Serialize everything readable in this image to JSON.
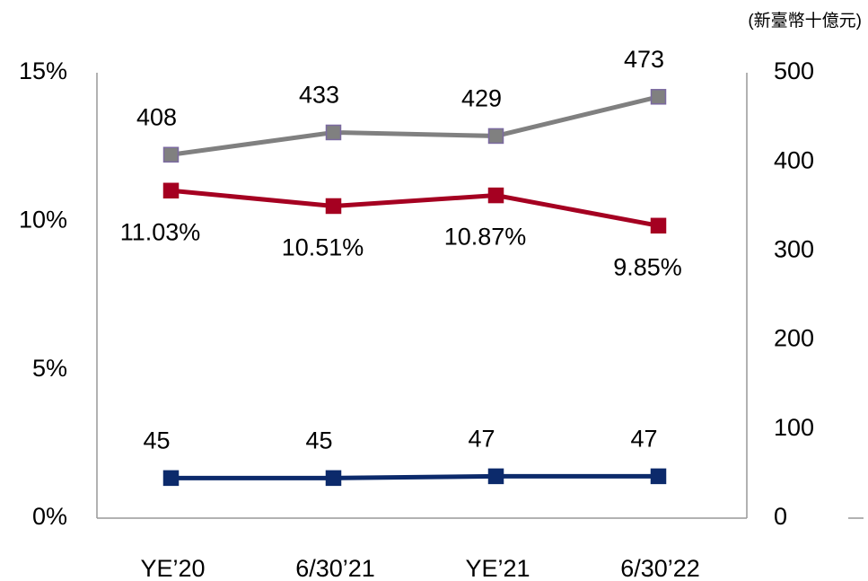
{
  "chart_data": {
    "type": "line",
    "annotation": "(新臺幣十億元)",
    "categories": [
      "YE’20",
      "6/30’21",
      "YE’21",
      "6/30’22"
    ],
    "series": [
      {
        "color": "#808080",
        "marker_edge": "#7b6aa0",
        "axis": "y2",
        "label_pos": "above",
        "values": [
          408,
          433,
          429,
          473
        ]
      },
      {
        "color": "#a50021",
        "axis": "y",
        "label_pos": "below",
        "values": [
          11.03,
          10.51,
          10.87,
          9.85
        ],
        "value_labels": [
          "11.03%",
          "10.51%",
          "10.87%",
          "9.85%"
        ]
      },
      {
        "color": "#0c2a6b",
        "axis": "y2",
        "label_pos": "above",
        "values": [
          45,
          45,
          47,
          47
        ]
      }
    ],
    "ylim": [
      0,
      15
    ],
    "yticks": [
      {
        "value": 0,
        "label": "0%"
      },
      {
        "value": 5,
        "label": "5%"
      },
      {
        "value": 10,
        "label": "10%"
      },
      {
        "value": 15,
        "label": "15%"
      }
    ],
    "y2lim": [
      0,
      500
    ],
    "y2ticks": [
      0,
      100,
      200,
      300,
      400,
      500
    ]
  }
}
